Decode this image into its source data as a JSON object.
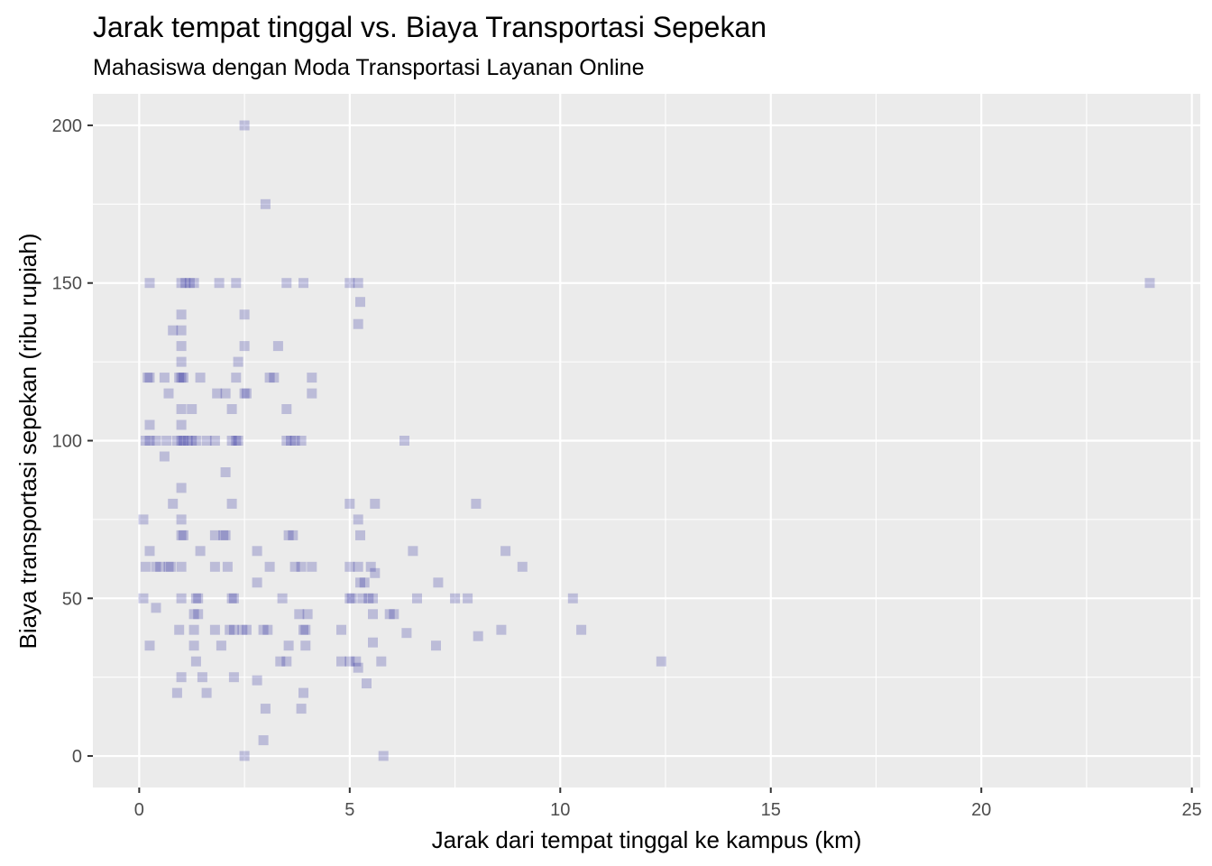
{
  "chart_data": {
    "type": "scatter",
    "title": "Jarak tempat tinggal vs. Biaya Transportasi Sepekan",
    "subtitle": "Mahasiswa dengan Moda Transportasi Layanan Online",
    "xlabel": "Jarak dari tempat tinggal ke kampus (km)",
    "ylabel": "Biaya transportasi sepekan (ribu rupiah)",
    "xlim": [
      -1.1,
      25.2
    ],
    "ylim": [
      -10,
      210
    ],
    "x_ticks": [
      0,
      5,
      10,
      15,
      20,
      25
    ],
    "y_ticks": [
      0,
      50,
      100,
      150,
      200
    ],
    "grid": true,
    "point_color": "#00008B",
    "point_opacity": 0.2,
    "panel_background": "#EBEBEB",
    "points": [
      [
        2.5,
        200
      ],
      [
        3.0,
        175
      ],
      [
        0.25,
        150
      ],
      [
        1.0,
        150
      ],
      [
        1.1,
        150
      ],
      [
        1.2,
        150
      ],
      [
        1.3,
        150
      ],
      [
        1.9,
        150
      ],
      [
        2.3,
        150
      ],
      [
        3.5,
        150
      ],
      [
        3.9,
        150
      ],
      [
        5.0,
        150
      ],
      [
        5.2,
        150
      ],
      [
        24.0,
        150
      ],
      [
        5.25,
        144
      ],
      [
        5.2,
        137
      ],
      [
        1.0,
        140
      ],
      [
        2.5,
        140
      ],
      [
        0.8,
        135
      ],
      [
        1.0,
        135
      ],
      [
        1.0,
        130
      ],
      [
        2.5,
        130
      ],
      [
        3.3,
        130
      ],
      [
        2.35,
        125
      ],
      [
        1.0,
        125
      ],
      [
        0.2,
        120
      ],
      [
        0.25,
        120
      ],
      [
        0.6,
        120
      ],
      [
        0.95,
        120
      ],
      [
        1.0,
        120
      ],
      [
        1.05,
        120
      ],
      [
        1.45,
        120
      ],
      [
        2.3,
        120
      ],
      [
        3.1,
        120
      ],
      [
        3.2,
        120
      ],
      [
        4.1,
        120
      ],
      [
        0.7,
        115
      ],
      [
        1.85,
        115
      ],
      [
        2.05,
        115
      ],
      [
        2.5,
        115
      ],
      [
        2.55,
        115
      ],
      [
        4.1,
        115
      ],
      [
        1.0,
        110
      ],
      [
        1.25,
        110
      ],
      [
        2.2,
        110
      ],
      [
        3.5,
        110
      ],
      [
        0.25,
        105
      ],
      [
        1.0,
        105
      ],
      [
        0.15,
        100
      ],
      [
        0.25,
        100
      ],
      [
        0.4,
        100
      ],
      [
        0.65,
        100
      ],
      [
        0.9,
        100
      ],
      [
        1.0,
        100
      ],
      [
        1.05,
        100
      ],
      [
        1.15,
        100
      ],
      [
        1.25,
        100
      ],
      [
        1.35,
        100
      ],
      [
        1.6,
        100
      ],
      [
        1.8,
        100
      ],
      [
        2.2,
        100
      ],
      [
        2.3,
        100
      ],
      [
        2.35,
        100
      ],
      [
        3.5,
        100
      ],
      [
        3.6,
        100
      ],
      [
        3.7,
        100
      ],
      [
        3.85,
        100
      ],
      [
        6.3,
        100
      ],
      [
        0.6,
        95
      ],
      [
        2.05,
        90
      ],
      [
        1.0,
        85
      ],
      [
        0.8,
        80
      ],
      [
        2.2,
        80
      ],
      [
        5.0,
        80
      ],
      [
        5.6,
        80
      ],
      [
        8.0,
        80
      ],
      [
        0.1,
        75
      ],
      [
        1.0,
        75
      ],
      [
        5.2,
        75
      ],
      [
        1.0,
        70
      ],
      [
        1.05,
        70
      ],
      [
        1.8,
        70
      ],
      [
        2.0,
        70
      ],
      [
        2.05,
        70
      ],
      [
        3.55,
        70
      ],
      [
        3.65,
        70
      ],
      [
        5.25,
        70
      ],
      [
        0.25,
        65
      ],
      [
        1.45,
        65
      ],
      [
        2.8,
        65
      ],
      [
        6.5,
        65
      ],
      [
        8.7,
        65
      ],
      [
        0.15,
        60
      ],
      [
        0.4,
        60
      ],
      [
        0.5,
        60
      ],
      [
        0.7,
        60
      ],
      [
        0.75,
        60
      ],
      [
        1.0,
        60
      ],
      [
        1.8,
        60
      ],
      [
        2.1,
        60
      ],
      [
        3.1,
        60
      ],
      [
        3.7,
        60
      ],
      [
        3.85,
        60
      ],
      [
        4.1,
        60
      ],
      [
        5.0,
        60
      ],
      [
        5.2,
        60
      ],
      [
        5.5,
        60
      ],
      [
        9.1,
        60
      ],
      [
        5.6,
        58
      ],
      [
        2.8,
        55
      ],
      [
        5.25,
        55
      ],
      [
        5.35,
        55
      ],
      [
        7.1,
        55
      ],
      [
        0.1,
        50
      ],
      [
        1.0,
        50
      ],
      [
        1.35,
        50
      ],
      [
        1.4,
        50
      ],
      [
        2.2,
        50
      ],
      [
        2.25,
        50
      ],
      [
        3.4,
        50
      ],
      [
        5.0,
        50
      ],
      [
        5.05,
        50
      ],
      [
        5.3,
        50
      ],
      [
        5.45,
        50
      ],
      [
        5.55,
        50
      ],
      [
        6.6,
        50
      ],
      [
        7.5,
        50
      ],
      [
        7.8,
        50
      ],
      [
        10.3,
        50
      ],
      [
        0.4,
        47
      ],
      [
        1.3,
        45
      ],
      [
        1.4,
        45
      ],
      [
        3.8,
        45
      ],
      [
        4.0,
        45
      ],
      [
        5.55,
        45
      ],
      [
        5.95,
        45
      ],
      [
        6.05,
        45
      ],
      [
        0.95,
        40
      ],
      [
        1.3,
        40
      ],
      [
        1.8,
        40
      ],
      [
        2.15,
        40
      ],
      [
        2.25,
        40
      ],
      [
        2.45,
        40
      ],
      [
        2.55,
        40
      ],
      [
        2.95,
        40
      ],
      [
        3.05,
        40
      ],
      [
        3.9,
        40
      ],
      [
        3.95,
        40
      ],
      [
        4.8,
        40
      ],
      [
        8.6,
        40
      ],
      [
        10.5,
        40
      ],
      [
        6.35,
        39
      ],
      [
        8.05,
        38
      ],
      [
        0.25,
        35
      ],
      [
        1.3,
        35
      ],
      [
        1.95,
        35
      ],
      [
        3.55,
        35
      ],
      [
        3.95,
        35
      ],
      [
        5.55,
        36
      ],
      [
        7.05,
        35
      ],
      [
        1.35,
        30
      ],
      [
        3.35,
        30
      ],
      [
        3.5,
        30
      ],
      [
        4.8,
        30
      ],
      [
        5.0,
        30
      ],
      [
        5.15,
        30
      ],
      [
        5.75,
        30
      ],
      [
        12.4,
        30
      ],
      [
        5.2,
        28
      ],
      [
        1.0,
        25
      ],
      [
        1.5,
        25
      ],
      [
        2.25,
        25
      ],
      [
        2.8,
        24
      ],
      [
        5.4,
        23
      ],
      [
        0.9,
        20
      ],
      [
        1.6,
        20
      ],
      [
        3.9,
        20
      ],
      [
        3.0,
        15
      ],
      [
        3.85,
        15
      ],
      [
        2.95,
        5
      ],
      [
        2.5,
        0
      ],
      [
        5.8,
        0
      ]
    ]
  }
}
